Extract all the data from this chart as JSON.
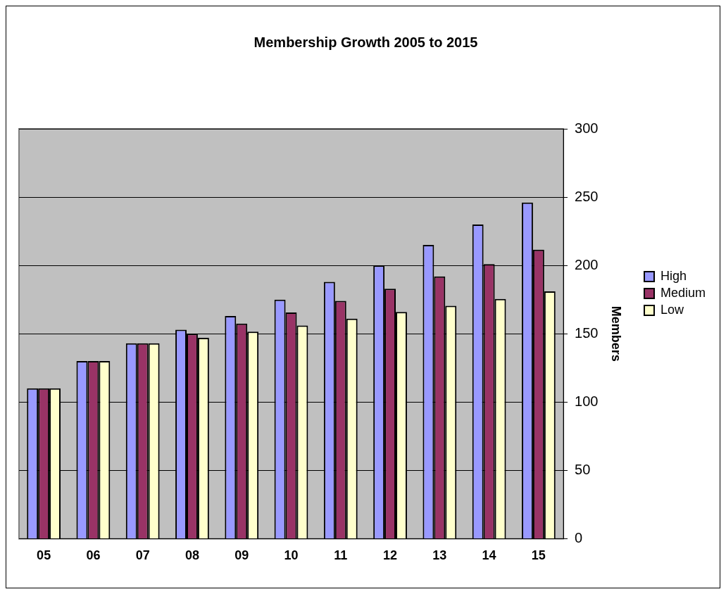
{
  "chart_data": {
    "type": "bar",
    "title": "Membership Growth 2005 to 2015",
    "ylabel": "Members",
    "categories": [
      "05",
      "06",
      "07",
      "08",
      "09",
      "10",
      "11",
      "12",
      "13",
      "14",
      "15"
    ],
    "series": [
      {
        "name": "High",
        "color": "#9999ff",
        "values": [
          110,
          130,
          143,
          153,
          163,
          175,
          188,
          200,
          215,
          230,
          246
        ]
      },
      {
        "name": "Medium",
        "color": "#993366",
        "values": [
          110,
          130,
          143,
          150,
          157.5,
          165.5,
          174,
          183,
          192,
          201,
          211.5
        ]
      },
      {
        "name": "Low",
        "color": "#ffffcc",
        "values": [
          110,
          130,
          143,
          147,
          151.5,
          156,
          161,
          166,
          170.5,
          175.5,
          181
        ]
      }
    ],
    "ylim": [
      0,
      300
    ],
    "yticks": [
      0,
      50,
      100,
      150,
      200,
      250,
      300
    ],
    "grid": "y",
    "legend": "right"
  }
}
